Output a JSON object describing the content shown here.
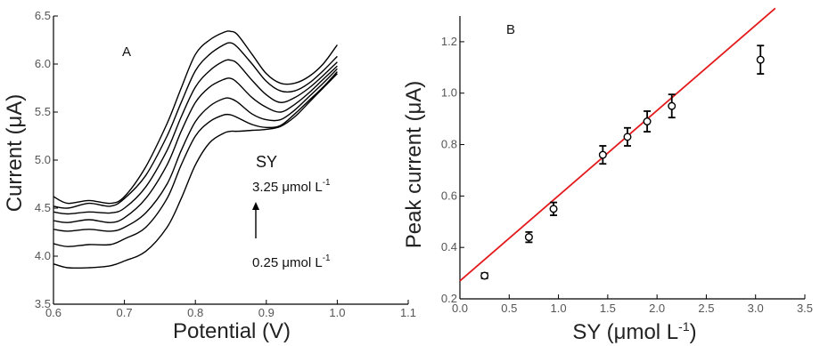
{
  "chart_data": [
    {
      "panel": "A",
      "type": "line",
      "xlabel": "Potential (V)",
      "ylabel": "Current (μA)",
      "xlim": [
        0.6,
        1.1
      ],
      "ylim": [
        3.5,
        6.5
      ],
      "x_ticks": [
        "0.6",
        "0.7",
        "0.8",
        "0.9",
        "1.0",
        "1.1"
      ],
      "y_ticks": [
        "3.5",
        "4.0",
        "4.5",
        "5.0",
        "5.5",
        "6.0",
        "6.5"
      ],
      "annotations": {
        "analyte": "SY",
        "high_conc": "3.25 μmol L",
        "low_conc": "0.25 μmol L",
        "superscript": "-1"
      },
      "x": [
        0.6,
        0.62,
        0.65,
        0.68,
        0.7,
        0.73,
        0.76,
        0.78,
        0.8,
        0.82,
        0.84,
        0.85,
        0.86,
        0.88,
        0.9,
        0.92,
        0.94,
        0.96,
        0.98,
        1.0
      ],
      "series": [
        {
          "values": [
            3.92,
            3.88,
            3.88,
            3.9,
            3.95,
            4.05,
            4.3,
            4.6,
            4.95,
            5.18,
            5.28,
            5.3,
            5.3,
            5.31,
            5.32,
            5.35,
            5.45,
            5.6,
            5.75,
            5.9
          ]
        },
        {
          "values": [
            4.13,
            4.1,
            4.12,
            4.12,
            4.18,
            4.3,
            4.6,
            4.95,
            5.25,
            5.4,
            5.47,
            5.47,
            5.44,
            5.37,
            5.34,
            5.36,
            5.48,
            5.62,
            5.76,
            5.92
          ]
        },
        {
          "values": [
            4.28,
            4.26,
            4.28,
            4.26,
            4.3,
            4.45,
            4.75,
            5.1,
            5.4,
            5.56,
            5.64,
            5.64,
            5.6,
            5.48,
            5.42,
            5.42,
            5.52,
            5.66,
            5.8,
            5.95
          ]
        },
        {
          "values": [
            4.37,
            4.35,
            4.38,
            4.35,
            4.4,
            4.6,
            4.95,
            5.3,
            5.6,
            5.76,
            5.84,
            5.85,
            5.8,
            5.65,
            5.55,
            5.5,
            5.58,
            5.7,
            5.84,
            5.98
          ]
        },
        {
          "values": [
            4.46,
            4.44,
            4.46,
            4.45,
            4.5,
            4.72,
            5.1,
            5.45,
            5.76,
            5.93,
            6.03,
            6.04,
            6.0,
            5.83,
            5.68,
            5.6,
            5.65,
            5.75,
            5.88,
            6.02
          ]
        },
        {
          "values": [
            4.52,
            4.5,
            4.55,
            4.52,
            4.6,
            4.84,
            5.25,
            5.6,
            5.93,
            6.1,
            6.2,
            6.22,
            6.17,
            6.0,
            5.82,
            5.72,
            5.72,
            5.8,
            5.93,
            6.08
          ]
        },
        {
          "values": [
            4.62,
            4.55,
            4.58,
            4.55,
            4.62,
            4.93,
            5.38,
            5.75,
            6.1,
            6.25,
            6.33,
            6.34,
            6.3,
            6.1,
            5.9,
            5.8,
            5.8,
            5.87,
            6.0,
            6.2
          ]
        }
      ]
    },
    {
      "panel": "B",
      "type": "scatter",
      "xlabel": "SY (μmol L",
      "xlabel_sup": "-1",
      "xlabel_end": ")",
      "ylabel": "Peak current (μA)",
      "xlim": [
        0.0,
        3.5
      ],
      "ylim": [
        0.2,
        1.3
      ],
      "x_ticks": [
        "0.0",
        "0.5",
        "1.0",
        "1.5",
        "2.0",
        "2.5",
        "3.0",
        "3.5"
      ],
      "y_ticks": [
        "0.2",
        "0.4",
        "0.6",
        "0.8",
        "1.0",
        "1.2"
      ],
      "points": {
        "x": [
          0.25,
          0.7,
          0.95,
          1.45,
          1.7,
          1.9,
          2.15,
          3.05
        ],
        "y": [
          0.29,
          0.44,
          0.55,
          0.76,
          0.83,
          0.89,
          0.95,
          1.13
        ],
        "err": [
          0.01,
          0.02,
          0.025,
          0.035,
          0.035,
          0.04,
          0.045,
          0.055
        ]
      },
      "fit_line": {
        "x": [
          0.0,
          3.2
        ],
        "y": [
          0.27,
          1.33
        ],
        "color": "#e41a1c"
      }
    }
  ]
}
